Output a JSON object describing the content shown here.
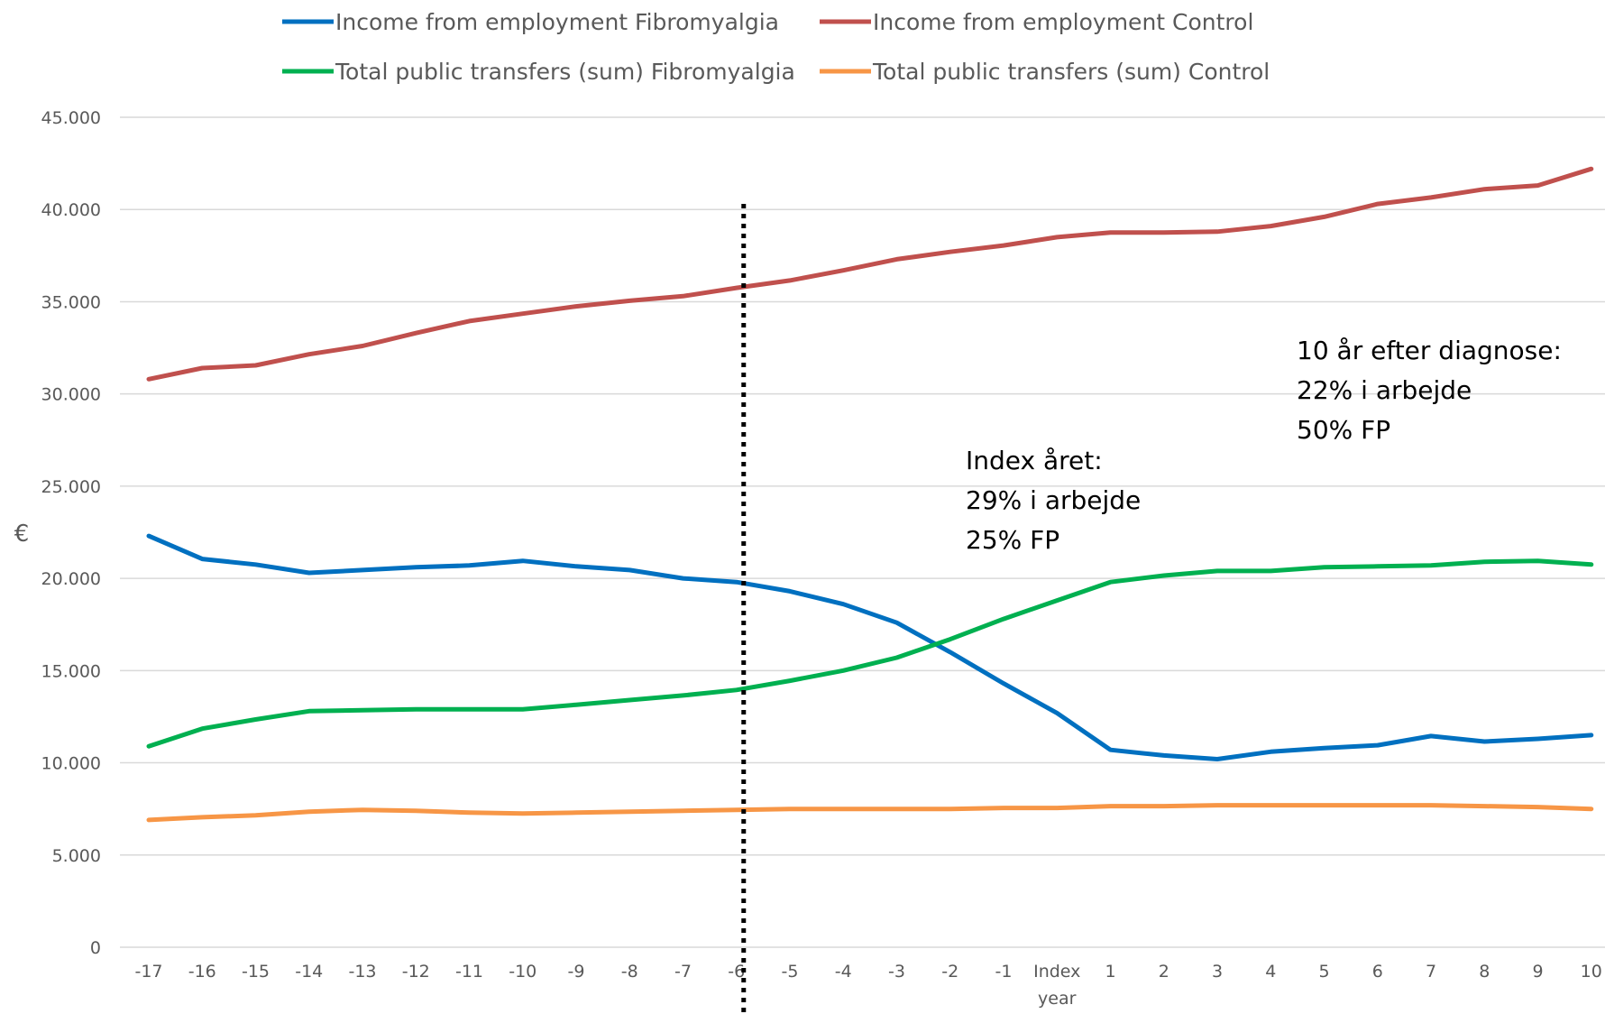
{
  "chart_data": {
    "type": "line",
    "title": "",
    "xlabel": "",
    "ylabel": "€",
    "categories": [
      "-17",
      "-16",
      "-15",
      "-14",
      "-13",
      "-12",
      "-11",
      "-10",
      "-9",
      "-8",
      "-7",
      "-6",
      "-5",
      "-4",
      "-3",
      "-2",
      "-1",
      "Index year",
      "1",
      "2",
      "3",
      "4",
      "5",
      "6",
      "7",
      "8",
      "9",
      "10"
    ],
    "ylim": [
      0,
      45000
    ],
    "yticks": [
      0,
      5000,
      10000,
      15000,
      20000,
      25000,
      30000,
      35000,
      40000,
      45000
    ],
    "ytick_labels": [
      "0",
      "5.000",
      "10.000",
      "15.000",
      "20.000",
      "25.000",
      "30.000",
      "35.000",
      "40.000",
      "45.000"
    ],
    "grid": true,
    "legend_position": "top",
    "series": [
      {
        "name": "Income from employment Fibromyalgia",
        "color": "#0070C0",
        "values": [
          22300,
          21050,
          20750,
          20300,
          20450,
          20600,
          20700,
          20950,
          20650,
          20450,
          20000,
          19800,
          19300,
          18600,
          17600,
          16000,
          14300,
          12700,
          10700,
          10400,
          10200,
          10600,
          10800,
          10950,
          11450,
          11150,
          11300,
          11500
        ]
      },
      {
        "name": "Income from employment Control",
        "color": "#C0504D",
        "values": [
          30800,
          31400,
          31550,
          32150,
          32600,
          33300,
          33950,
          34350,
          34750,
          35050,
          35300,
          35750,
          36150,
          36700,
          37300,
          37700,
          38050,
          38500,
          38750,
          38750,
          38800,
          39100,
          39600,
          40300,
          40650,
          41100,
          41300,
          42200
        ]
      },
      {
        "name": "Total public transfers (sum) Fibromyalgia",
        "color": "#00B050",
        "values": [
          10900,
          11850,
          12350,
          12800,
          12850,
          12900,
          12900,
          12900,
          13150,
          13400,
          13650,
          13950,
          14450,
          15000,
          15700,
          16700,
          17800,
          18800,
          19800,
          20150,
          20400,
          20400,
          20600,
          20650,
          20700,
          20900,
          20950,
          20750
        ]
      },
      {
        "name": "Total public transfers (sum) Control",
        "color": "#F79646",
        "values": [
          6900,
          7050,
          7150,
          7350,
          7450,
          7400,
          7300,
          7250,
          7300,
          7350,
          7400,
          7450,
          7500,
          7500,
          7500,
          7500,
          7550,
          7550,
          7650,
          7650,
          7700,
          7700,
          7700,
          7700,
          7700,
          7650,
          7600,
          7500
        ]
      }
    ],
    "vertical_marker": {
      "category": "-6",
      "style": "dotted",
      "color": "#000000"
    },
    "annotations": [
      {
        "lines": [
          "Index året:",
          "29% i arbejde",
          "25% FP"
        ]
      },
      {
        "lines": [
          "10 år efter diagnose:",
          "22% i arbejde",
          "50% FP"
        ]
      }
    ]
  }
}
